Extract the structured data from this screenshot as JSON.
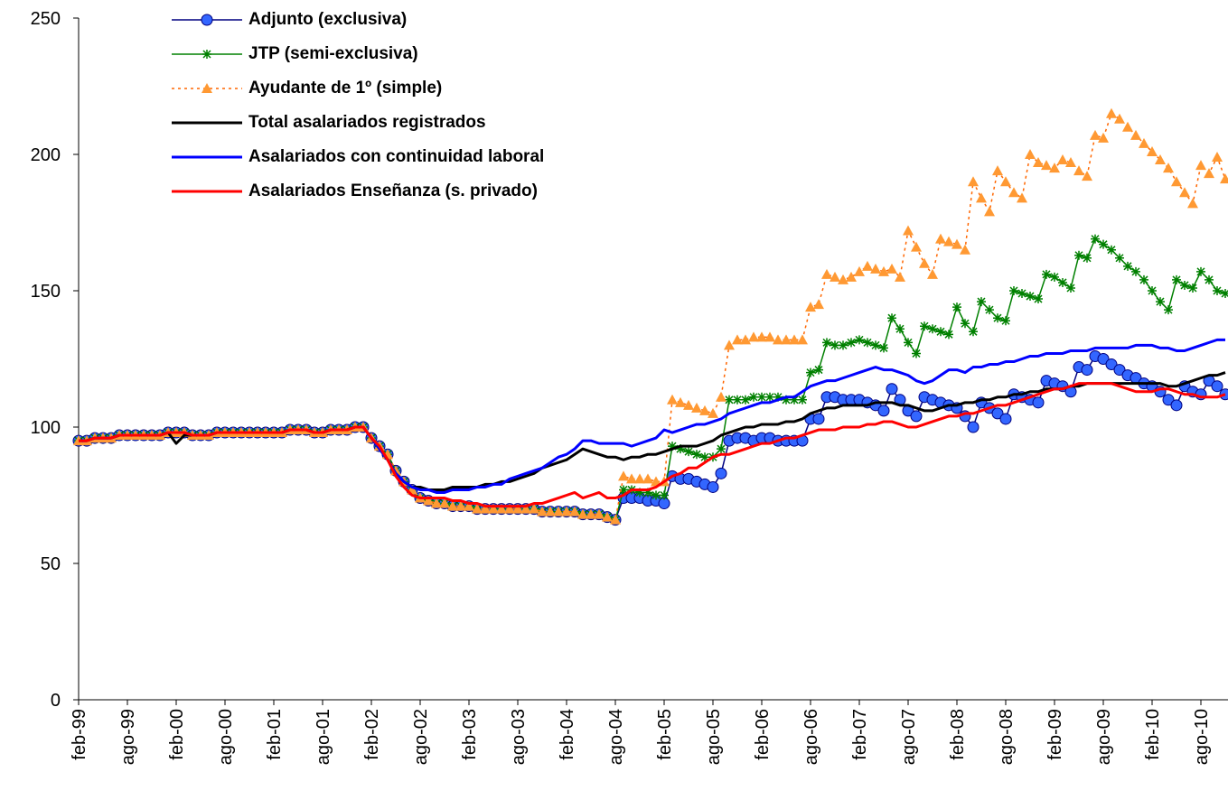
{
  "chart_data": {
    "type": "line",
    "categories": [
      "feb-99",
      null,
      null,
      null,
      null,
      null,
      "ago-99",
      null,
      null,
      null,
      null,
      null,
      "feb-00",
      null,
      null,
      null,
      null,
      null,
      "ago-00",
      null,
      null,
      null,
      null,
      null,
      "feb-01",
      null,
      null,
      null,
      null,
      null,
      "ago-01",
      null,
      null,
      null,
      null,
      null,
      "feb-02",
      null,
      null,
      null,
      null,
      null,
      "ago-02",
      null,
      null,
      null,
      null,
      null,
      "feb-03",
      null,
      null,
      null,
      null,
      null,
      "ago-03",
      null,
      null,
      null,
      null,
      null,
      "feb-04",
      null,
      null,
      null,
      null,
      null,
      "ago-04",
      null,
      null,
      null,
      null,
      null,
      "feb-05",
      null,
      null,
      null,
      null,
      null,
      "ago-05",
      null,
      null,
      null,
      null,
      null,
      "feb-06",
      null,
      null,
      null,
      null,
      null,
      "ago-06",
      null,
      null,
      null,
      null,
      null,
      "feb-07",
      null,
      null,
      null,
      null,
      null,
      "ago-07",
      null,
      null,
      null,
      null,
      null,
      "feb-08",
      null,
      null,
      null,
      null,
      null,
      "ago-08",
      null,
      null,
      null,
      null,
      null,
      "feb-09",
      null,
      null,
      null,
      null,
      null,
      "ago-09",
      null,
      null,
      null,
      null,
      null,
      "feb-10",
      null,
      null,
      null,
      null,
      null,
      "ago-10",
      null,
      null,
      null
    ],
    "series": [
      {
        "name": "Adjunto (exclusiva)",
        "color": "#000080",
        "marker": "circle",
        "marker_color": "#3366ff",
        "values": [
          95,
          95,
          96,
          96,
          96,
          97,
          97,
          97,
          97,
          97,
          97,
          98,
          98,
          98,
          97,
          97,
          97,
          98,
          98,
          98,
          98,
          98,
          98,
          98,
          98,
          98,
          99,
          99,
          99,
          98,
          98,
          99,
          99,
          99,
          100,
          100,
          96,
          93,
          90,
          84,
          80,
          77,
          74,
          73,
          72,
          72,
          71,
          71,
          71,
          70,
          70,
          70,
          70,
          70,
          70,
          70,
          70,
          69,
          69,
          69,
          69,
          69,
          68,
          68,
          68,
          67,
          66,
          74,
          74,
          74,
          73,
          73,
          72,
          82,
          81,
          81,
          80,
          79,
          78,
          83,
          95,
          96,
          96,
          95,
          96,
          96,
          95,
          95,
          95,
          95,
          103,
          103,
          111,
          111,
          110,
          110,
          110,
          109,
          108,
          106,
          114,
          110,
          106,
          104,
          111,
          110,
          109,
          108,
          107,
          104,
          100,
          109,
          107,
          105,
          103,
          112,
          111,
          110,
          109,
          117,
          116,
          115,
          113,
          122,
          121,
          126,
          125,
          123,
          121,
          119,
          118,
          116,
          115,
          113,
          110,
          108,
          115,
          113,
          112,
          117,
          115,
          112
        ]
      },
      {
        "name": "JTP (semi-exclusiva)",
        "color": "#008000",
        "marker": "asterisk",
        "marker_color": "#008000",
        "values": [
          95,
          95,
          96,
          96,
          96,
          97,
          97,
          97,
          97,
          97,
          97,
          98,
          98,
          98,
          97,
          97,
          97,
          98,
          98,
          98,
          98,
          98,
          98,
          98,
          98,
          98,
          99,
          99,
          99,
          98,
          98,
          99,
          99,
          99,
          100,
          100,
          96,
          93,
          90,
          84,
          80,
          77,
          74,
          73,
          72,
          72,
          71,
          71,
          71,
          70,
          70,
          70,
          70,
          70,
          70,
          70,
          70,
          69,
          69,
          69,
          69,
          69,
          68,
          68,
          68,
          67,
          66,
          77,
          77,
          76,
          76,
          75,
          75,
          93,
          92,
          91,
          90,
          89,
          89,
          92,
          110,
          110,
          110,
          111,
          111,
          111,
          111,
          110,
          110,
          110,
          120,
          121,
          131,
          130,
          130,
          131,
          132,
          131,
          130,
          129,
          140,
          136,
          131,
          127,
          137,
          136,
          135,
          134,
          144,
          138,
          135,
          146,
          143,
          140,
          139,
          150,
          149,
          148,
          147,
          156,
          155,
          153,
          151,
          163,
          162,
          169,
          167,
          165,
          162,
          159,
          157,
          154,
          150,
          146,
          143,
          154,
          152,
          151,
          157,
          154,
          150,
          149
        ]
      },
      {
        "name": "Ayudante de 1º (simple)",
        "color": "#ff6600",
        "dash": true,
        "marker": "triangle",
        "marker_color": "#ff9933",
        "values": [
          95,
          95,
          96,
          96,
          96,
          97,
          97,
          97,
          97,
          97,
          97,
          98,
          98,
          98,
          97,
          97,
          97,
          98,
          98,
          98,
          98,
          98,
          98,
          98,
          98,
          98,
          99,
          99,
          99,
          98,
          98,
          99,
          99,
          99,
          100,
          100,
          96,
          93,
          90,
          84,
          80,
          77,
          74,
          73,
          72,
          72,
          71,
          71,
          71,
          70,
          70,
          70,
          70,
          70,
          70,
          70,
          70,
          69,
          69,
          69,
          69,
          69,
          68,
          68,
          68,
          67,
          66,
          82,
          81,
          81,
          81,
          80,
          80,
          110,
          109,
          108,
          107,
          106,
          105,
          111,
          130,
          132,
          132,
          133,
          133,
          133,
          132,
          132,
          132,
          132,
          144,
          145,
          156,
          155,
          154,
          155,
          157,
          159,
          158,
          157,
          158,
          155,
          172,
          166,
          160,
          156,
          169,
          168,
          167,
          165,
          190,
          184,
          179,
          194,
          190,
          186,
          184,
          200,
          197,
          196,
          195,
          198,
          197,
          194,
          192,
          207,
          206,
          215,
          213,
          210,
          207,
          204,
          201,
          198,
          195,
          190,
          186,
          182,
          196,
          193,
          199,
          191
        ]
      },
      {
        "name": "Total asalariados registrados",
        "color": "#000000",
        "width": 3,
        "values": [
          95,
          95,
          96,
          96,
          96,
          97,
          97,
          97,
          97,
          97,
          97,
          98,
          94,
          97,
          97,
          97,
          97,
          98,
          98,
          98,
          98,
          98,
          98,
          98,
          98,
          98,
          99,
          99,
          99,
          98,
          98,
          99,
          99,
          99,
          100,
          100,
          96,
          92,
          88,
          83,
          80,
          78,
          78,
          77,
          77,
          77,
          78,
          78,
          78,
          78,
          79,
          79,
          80,
          80,
          81,
          82,
          83,
          85,
          86,
          87,
          88,
          90,
          92,
          91,
          90,
          89,
          89,
          88,
          89,
          89,
          90,
          90,
          91,
          92,
          93,
          93,
          93,
          94,
          95,
          97,
          98,
          99,
          100,
          100,
          101,
          101,
          101,
          102,
          102,
          103,
          105,
          106,
          107,
          107,
          108,
          108,
          108,
          108,
          109,
          109,
          109,
          108,
          108,
          107,
          106,
          106,
          107,
          108,
          108,
          109,
          109,
          110,
          110,
          111,
          111,
          112,
          112,
          113,
          113,
          114,
          114,
          114,
          115,
          115,
          116,
          116,
          116,
          116,
          116,
          116,
          116,
          116,
          116,
          116,
          115,
          115,
          116,
          117,
          118,
          119,
          119,
          120
        ]
      },
      {
        "name": "Asalariados con continuidad laboral",
        "color": "#0000ff",
        "width": 3,
        "values": [
          95,
          95,
          96,
          96,
          96,
          97,
          97,
          97,
          97,
          97,
          97,
          98,
          98,
          98,
          97,
          97,
          97,
          98,
          98,
          98,
          98,
          98,
          98,
          98,
          98,
          98,
          99,
          99,
          99,
          98,
          98,
          99,
          99,
          99,
          100,
          100,
          96,
          92,
          88,
          83,
          80,
          78,
          77,
          77,
          76,
          76,
          77,
          77,
          77,
          78,
          78,
          79,
          79,
          81,
          82,
          83,
          84,
          85,
          87,
          89,
          90,
          92,
          95,
          95,
          94,
          94,
          94,
          94,
          93,
          94,
          95,
          96,
          99,
          98,
          99,
          100,
          101,
          101,
          102,
          103,
          105,
          106,
          107,
          108,
          109,
          109,
          110,
          111,
          111,
          113,
          115,
          116,
          117,
          117,
          118,
          119,
          120,
          121,
          122,
          121,
          121,
          120,
          119,
          117,
          116,
          117,
          119,
          121,
          121,
          120,
          122,
          122,
          123,
          123,
          124,
          124,
          125,
          126,
          126,
          127,
          127,
          127,
          128,
          128,
          128,
          129,
          129,
          129,
          129,
          129,
          130,
          130,
          130,
          129,
          129,
          128,
          128,
          129,
          130,
          131,
          132,
          132
        ]
      },
      {
        "name": "Asalariados Enseñanza (s. privado)",
        "color": "#ff0000",
        "width": 3,
        "values": [
          95,
          95,
          96,
          96,
          96,
          97,
          97,
          97,
          97,
          97,
          97,
          98,
          98,
          98,
          97,
          97,
          97,
          98,
          98,
          98,
          98,
          98,
          98,
          98,
          98,
          98,
          99,
          99,
          99,
          98,
          98,
          99,
          99,
          99,
          100,
          100,
          96,
          93,
          88,
          82,
          78,
          75,
          74,
          74,
          74,
          74,
          73,
          73,
          72,
          72,
          71,
          71,
          71,
          71,
          71,
          71,
          72,
          72,
          73,
          74,
          75,
          76,
          74,
          75,
          76,
          74,
          74,
          75,
          77,
          77,
          77,
          78,
          80,
          82,
          83,
          85,
          85,
          87,
          89,
          90,
          90,
          91,
          92,
          93,
          94,
          94,
          95,
          96,
          96,
          97,
          98,
          99,
          99,
          99,
          100,
          100,
          100,
          101,
          101,
          102,
          102,
          101,
          100,
          100,
          101,
          102,
          103,
          104,
          104,
          105,
          105,
          106,
          107,
          108,
          108,
          109,
          110,
          111,
          112,
          113,
          114,
          114,
          115,
          116,
          116,
          116,
          116,
          116,
          115,
          114,
          113,
          113,
          113,
          114,
          114,
          113,
          112,
          112,
          111,
          111,
          111,
          112
        ]
      }
    ],
    "ylim": [
      0,
      250
    ],
    "yticks": [
      0,
      50,
      100,
      150,
      200,
      250
    ],
    "legend": "top-left"
  }
}
